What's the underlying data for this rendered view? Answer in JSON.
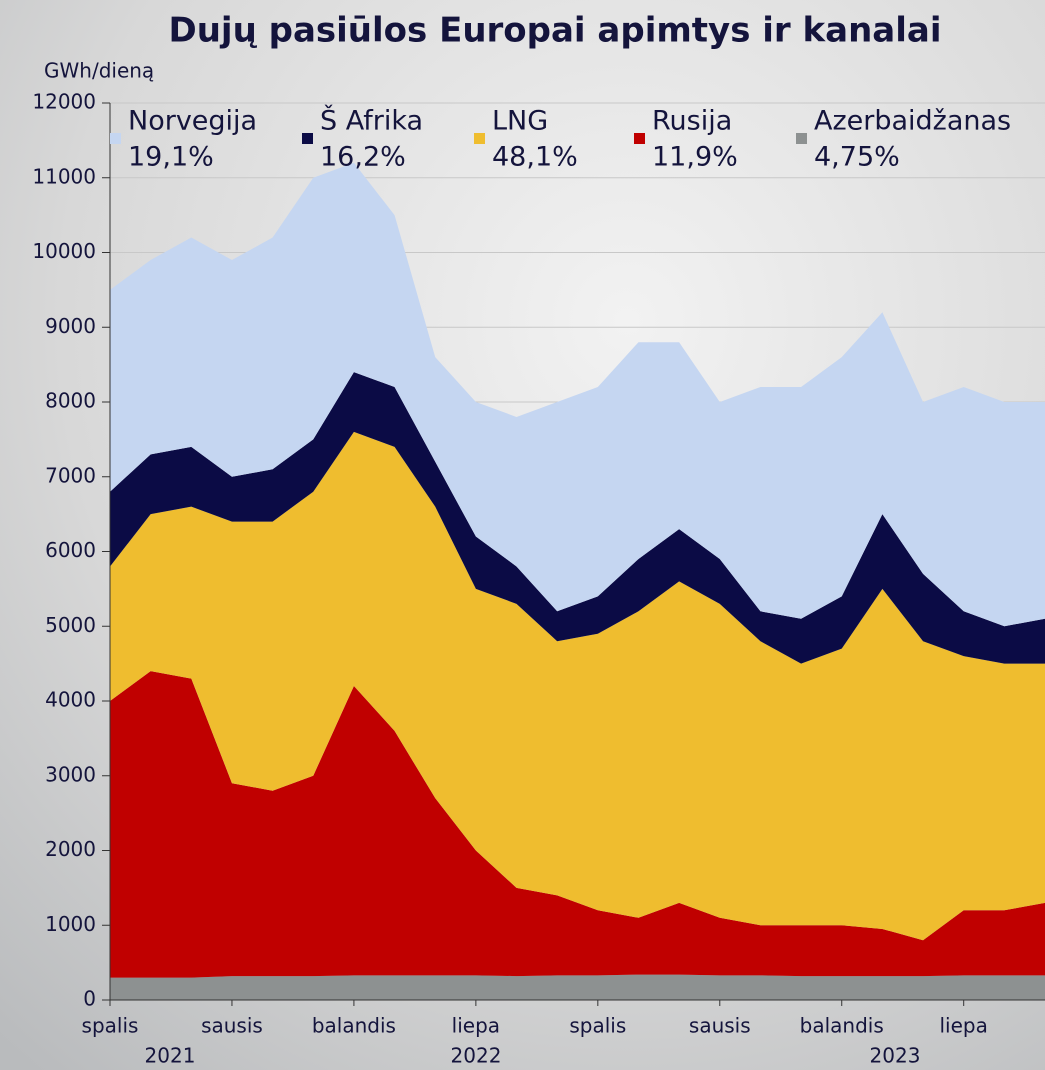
{
  "chart_data": {
    "type": "stacked_area",
    "title": "Dujų pasiūlos Europai apimtys ir kanalai",
    "y_label": "GWh/dieną",
    "categories": [
      "spalis",
      null,
      null,
      "sausis",
      null,
      null,
      "balandis",
      null,
      null,
      "liepa",
      null,
      null,
      "spalis",
      null,
      null,
      "sausis",
      null,
      null,
      "balandis",
      null,
      null,
      "liepa",
      null,
      null
    ],
    "x_year_labels": [
      "2021",
      "2022",
      "2023"
    ],
    "ylim": [
      0,
      12000
    ],
    "yticks": [
      0,
      1000,
      2000,
      3000,
      4000,
      5000,
      6000,
      7000,
      8000,
      9000,
      10000,
      11000,
      12000
    ],
    "grid": true,
    "series": [
      {
        "name": "Norvegija",
        "share_label": "19,1%",
        "color": "#c5d6f1",
        "values": [
          2700,
          2600,
          2800,
          2900,
          3100,
          3500,
          2800,
          2300,
          1400,
          1800,
          2000,
          2800,
          2800,
          2900,
          2500,
          2100,
          3000,
          3100,
          3200,
          2700,
          2300,
          3000,
          3000,
          2900
        ]
      },
      {
        "name": "Š Afrika",
        "share_label": "16,2%",
        "color": "#0b0b45",
        "values": [
          1000,
          800,
          800,
          600,
          700,
          700,
          800,
          800,
          600,
          700,
          500,
          400,
          500,
          700,
          700,
          600,
          400,
          600,
          700,
          1000,
          900,
          600,
          500,
          600
        ]
      },
      {
        "name": "LNG",
        "share_label": "48,1%",
        "color": "#efbd2f",
        "values": [
          1800,
          2100,
          2300,
          3500,
          3600,
          3800,
          3400,
          3800,
          3900,
          3500,
          3800,
          3400,
          3700,
          4100,
          4300,
          4200,
          3800,
          3500,
          3700,
          4550,
          4000,
          3400,
          3300,
          3200
        ]
      },
      {
        "name": "Rusija",
        "share_label": "11,9%",
        "color": "#c00000",
        "values": [
          3700,
          4100,
          4000,
          2580,
          2480,
          2680,
          3870,
          3270,
          2370,
          1670,
          1180,
          1070,
          870,
          760,
          960,
          770,
          670,
          680,
          680,
          630,
          480,
          870,
          870,
          970
        ]
      },
      {
        "name": "Azerbaidžanas",
        "share_label": "4,75%",
        "color": "#8d9191",
        "values": [
          300,
          300,
          300,
          320,
          320,
          320,
          330,
          330,
          330,
          330,
          320,
          330,
          330,
          340,
          340,
          330,
          330,
          320,
          320,
          320,
          320,
          330,
          330,
          330
        ]
      }
    ]
  }
}
